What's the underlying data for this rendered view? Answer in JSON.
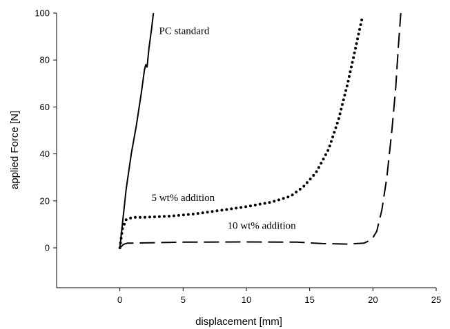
{
  "chart_data": {
    "type": "line",
    "xlabel": "displacement [mm]",
    "ylabel": "applied Force [N]",
    "xlim": [
      -5,
      25
    ],
    "ylim": [
      -17,
      100
    ],
    "xticks": [
      0,
      5,
      10,
      15,
      20,
      25
    ],
    "yticks": [
      0,
      20,
      40,
      60,
      80,
      100
    ],
    "grid": false,
    "legend": "none",
    "series": [
      {
        "name": "PC standard",
        "style": "solid",
        "x": [
          0,
          0.2,
          0.5,
          0.9,
          1.3,
          1.7,
          1.95,
          2.05,
          2.15,
          2.3,
          2.5,
          2.65
        ],
        "y": [
          0,
          10,
          25,
          40,
          52,
          66,
          76,
          78,
          77,
          85,
          93,
          100
        ]
      },
      {
        "name": "5 wt% addition",
        "style": "dotted",
        "x": [
          0,
          0.2,
          0.5,
          1,
          2,
          4,
          6,
          8,
          10,
          12,
          13.5,
          14.5,
          15.5,
          16.5,
          17.3,
          18,
          18.5,
          18.9,
          19.2
        ],
        "y": [
          0,
          8,
          12,
          13,
          13,
          13.5,
          14.5,
          16,
          17.5,
          19.5,
          22,
          26,
          32,
          42,
          55,
          70,
          82,
          92,
          99
        ]
      },
      {
        "name": "10 wt% addition",
        "style": "dashed",
        "x": [
          0,
          0.3,
          0.6,
          1,
          3,
          5,
          10,
          14,
          16,
          18,
          19.3,
          19.9,
          20.3,
          20.7,
          21.1,
          21.5,
          21.8,
          22.0,
          22.2
        ],
        "y": [
          0,
          1.5,
          2,
          2,
          2.2,
          2.4,
          2.5,
          2.4,
          1.8,
          1.6,
          2,
          3.5,
          7,
          16,
          30,
          50,
          68,
          85,
          100
        ]
      }
    ],
    "annotations": [
      {
        "text": "PC standard",
        "x": 3.1,
        "y": 91
      },
      {
        "text": "5 wt% addition",
        "x": 2.5,
        "y": 20
      },
      {
        "text": "10 wt% addition",
        "x": 8.5,
        "y": 8
      }
    ]
  }
}
